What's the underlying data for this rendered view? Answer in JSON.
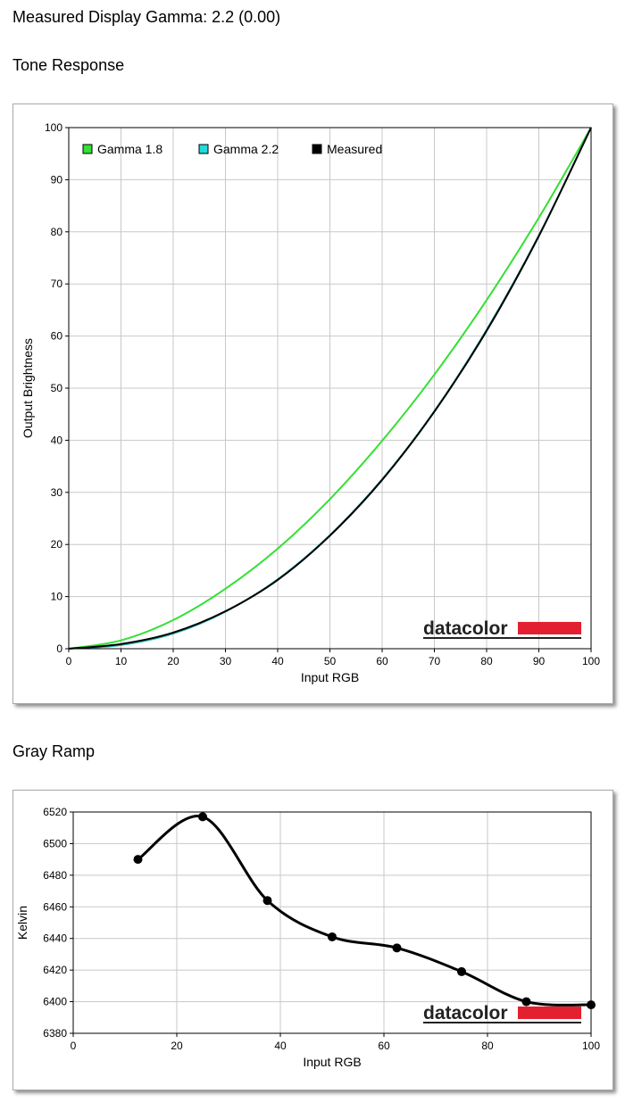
{
  "header": {
    "measured_gamma": "Measured Display Gamma: 2.2 (0.00)",
    "tone_heading": "Tone Response",
    "gray_heading": "Gray Ramp"
  },
  "logo_text": "datacolor",
  "colors": {
    "gamma18": "#33e033",
    "gamma22": "#2bb3b3",
    "measured": "#000000",
    "logo_red": "#e3202f"
  },
  "chart_data": [
    {
      "type": "line",
      "xlabel": "Input RGB",
      "ylabel": "Output Brightness",
      "xlim": [
        0,
        100
      ],
      "ylim": [
        0,
        100
      ],
      "xticks": [
        "0",
        "10",
        "20",
        "30",
        "40",
        "50",
        "60",
        "70",
        "80",
        "90",
        "100"
      ],
      "yticks": [
        "0",
        "10",
        "20",
        "30",
        "40",
        "50",
        "60",
        "70",
        "80",
        "90",
        "100"
      ],
      "grid": true,
      "legend_position": "top-left",
      "series": [
        {
          "name": "Gamma 1.8",
          "color": "#33e033",
          "x": [
            0,
            10,
            20,
            30,
            40,
            50,
            60,
            70,
            80,
            90,
            100
          ],
          "y": [
            0,
            1.6,
            5.5,
            11.5,
            19.2,
            28.7,
            39.9,
            52.6,
            66.9,
            82.7,
            100
          ]
        },
        {
          "name": "Gamma 2.2",
          "color": "#2bb3b3",
          "x": [
            0,
            10,
            20,
            30,
            40,
            50,
            60,
            70,
            80,
            90,
            100
          ],
          "y": [
            0,
            0.7,
            2.9,
            7.1,
            13.3,
            21.8,
            32.5,
            45.6,
            61.2,
            79.3,
            100
          ]
        },
        {
          "name": "Measured",
          "color": "#000000",
          "x": [
            0,
            10,
            20,
            30,
            40,
            50,
            60,
            70,
            80,
            90,
            100
          ],
          "y": [
            0,
            0.9,
            3.1,
            7.2,
            13.2,
            21.7,
            32.4,
            45.5,
            61.0,
            79.2,
            100
          ]
        }
      ]
    },
    {
      "type": "line",
      "xlabel": "Input RGB",
      "ylabel": "Kelvin",
      "xlim": [
        0,
        100
      ],
      "ylim": [
        6380,
        6520
      ],
      "xticks": [
        "0",
        "20",
        "40",
        "60",
        "80",
        "100"
      ],
      "yticks": [
        "6380",
        "6400",
        "6420",
        "6440",
        "6460",
        "6480",
        "6500",
        "6520"
      ],
      "grid": true,
      "series": [
        {
          "color": "#000000",
          "x": [
            12.5,
            25,
            37.5,
            50,
            62.5,
            75,
            87.5,
            100
          ],
          "y": [
            6490,
            6517,
            6464,
            6441,
            6434,
            6419,
            6400,
            6398
          ]
        }
      ]
    }
  ]
}
